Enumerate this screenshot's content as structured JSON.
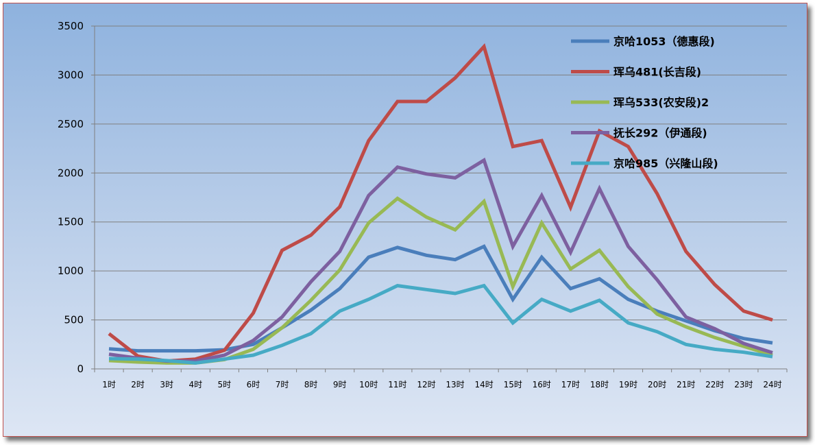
{
  "chart_data": {
    "type": "line",
    "title": "",
    "xlabel": "",
    "ylabel": "",
    "ylim": [
      0,
      3500
    ],
    "yticks": [
      0,
      500,
      1000,
      1500,
      2000,
      2500,
      3000,
      3500
    ],
    "grid": "horizontal",
    "legend_position": "top-right",
    "categories": [
      "1时",
      "2时",
      "3时",
      "4时",
      "5时",
      "6时",
      "7时",
      "8时",
      "9时",
      "10时",
      "11时",
      "12时",
      "13时",
      "14时",
      "15时",
      "16时",
      "17时",
      "18时",
      "19时",
      "20时",
      "21时",
      "22时",
      "23时",
      "24时"
    ],
    "series": [
      {
        "name": "京哈1053（德惠段)",
        "color": "#4a7ebb",
        "values": [
          205,
          185,
          185,
          185,
          195,
          250,
          420,
          600,
          820,
          1140,
          1240,
          1160,
          1115,
          1250,
          710,
          1140,
          820,
          920,
          710,
          590,
          490,
          390,
          310,
          265
        ]
      },
      {
        "name": "珲乌481(长吉段)",
        "color": "#be4b48",
        "values": [
          360,
          130,
          80,
          100,
          190,
          570,
          1210,
          1365,
          1655,
          2330,
          2730,
          2730,
          2970,
          3290,
          2270,
          2330,
          1650,
          2430,
          2270,
          1790,
          1200,
          860,
          590,
          500
        ]
      },
      {
        "name": "珲乌533(农安段)2",
        "color": "#98b954",
        "values": [
          85,
          70,
          60,
          60,
          95,
          200,
          420,
          700,
          1010,
          1490,
          1740,
          1550,
          1420,
          1710,
          840,
          1490,
          1020,
          1210,
          840,
          560,
          430,
          320,
          230,
          140
        ]
      },
      {
        "name": "抚长292（伊通段)",
        "color": "#7d60a0",
        "values": [
          150,
          110,
          80,
          80,
          140,
          290,
          530,
          890,
          1200,
          1770,
          2060,
          1990,
          1950,
          2130,
          1250,
          1770,
          1190,
          1840,
          1250,
          910,
          530,
          410,
          260,
          165
        ]
      },
      {
        "name": "京哈985（兴隆山段)",
        "color": "#46aac5",
        "values": [
          105,
          100,
          85,
          60,
          100,
          140,
          240,
          360,
          590,
          710,
          850,
          810,
          770,
          850,
          470,
          710,
          590,
          700,
          470,
          380,
          250,
          200,
          170,
          125
        ]
      }
    ]
  }
}
